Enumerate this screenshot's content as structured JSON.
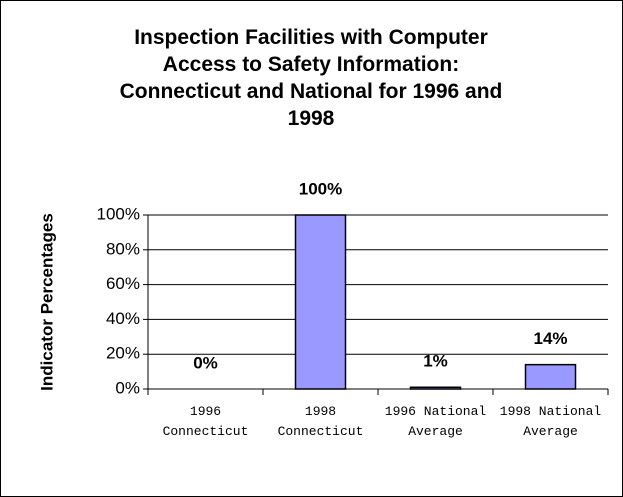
{
  "chart_data": {
    "type": "bar",
    "title": "Inspection Facilities with Computer Access to Safety Information: Connecticut and National for 1996 and 1998",
    "y_label": "Indicator Percentages",
    "categories": [
      "1996 Connecticut",
      "1998 Connecticut",
      "1996 National Average",
      "1998 National Average"
    ],
    "values": [
      0,
      100,
      1,
      14
    ],
    "value_labels": [
      "0%",
      "100%",
      "1%",
      "14%"
    ],
    "color": "#9999ff",
    "ylim": [
      0,
      100
    ],
    "yticks": [
      {
        "value": 0,
        "label": "0%"
      },
      {
        "value": 20,
        "label": "20%"
      },
      {
        "value": 40,
        "label": "40%"
      },
      {
        "value": 60,
        "label": "60%"
      },
      {
        "value": 80,
        "label": "80%"
      },
      {
        "value": 100,
        "label": "100%"
      }
    ],
    "grid": true
  }
}
